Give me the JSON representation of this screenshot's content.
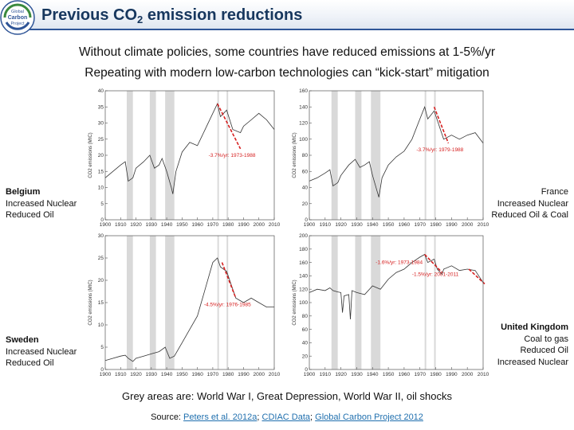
{
  "header": {
    "title_prefix": "Previous CO",
    "title_sub": "2",
    "title_suffix": " emission reductions",
    "logo_lines": [
      "Global",
      "Carbon",
      "Project"
    ]
  },
  "subtitle": {
    "line1": "Without climate policies, some countries have reduced emissions at 1-5%/yr",
    "line2": "Repeating with modern low-carbon technologies can “kick-start” mitigation"
  },
  "labels": {
    "belgium": {
      "name": "Belgium",
      "lines": [
        "Increased Nuclear",
        "Reduced Oil"
      ]
    },
    "france": {
      "name": "France",
      "lines": [
        "Increased Nuclear",
        "Reduced Oil & Coal"
      ]
    },
    "sweden": {
      "name": "Sweden",
      "lines": [
        "Increased Nuclear",
        "Reduced Oil"
      ]
    },
    "uk": {
      "name": "United Kingdom",
      "lines": [
        "Coal to gas",
        "Reduced Oil",
        "Increased Nuclear"
      ]
    }
  },
  "footnote": "Grey areas are: World War I, Great Depression, World War II, oil shocks",
  "source": {
    "prefix": "Source: ",
    "link1": "Peters et al. 2012a",
    "sep1": "; ",
    "link2": "CDIAC Data",
    "sep2": "; ",
    "link3": "Global Carbon Project 2012"
  },
  "colors": {
    "title": "#17375e",
    "accent_line": "#2f5597",
    "trend": "#d62020",
    "shade": "#d9d9d9",
    "link": "#1f6fae"
  },
  "chart_data": [
    {
      "type": "line",
      "id": "belgium",
      "ylabel": "CO2 emissions (MtC)",
      "xlim": [
        1900,
        2010
      ],
      "ylim": [
        0,
        40
      ],
      "xticks": [
        1900,
        1910,
        1920,
        1930,
        1940,
        1950,
        1960,
        1970,
        1980,
        1990,
        2000,
        2010
      ],
      "yticks": [
        0,
        5,
        10,
        15,
        20,
        25,
        30,
        35,
        40
      ],
      "shaded": [
        [
          1914,
          1918
        ],
        [
          1929,
          1933
        ],
        [
          1939,
          1945
        ],
        [
          1973,
          1974
        ],
        [
          1979,
          1980
        ]
      ],
      "x": [
        1900,
        1905,
        1910,
        1913,
        1915,
        1918,
        1920,
        1925,
        1929,
        1932,
        1935,
        1937,
        1940,
        1943,
        1944,
        1946,
        1950,
        1955,
        1960,
        1965,
        1970,
        1973,
        1975,
        1979,
        1983,
        1988,
        1990,
        1995,
        2000,
        2005,
        2010
      ],
      "y": [
        13,
        15,
        17,
        18,
        12,
        13,
        16,
        18,
        20,
        16,
        17,
        19,
        15,
        10,
        8,
        15,
        21,
        24,
        23,
        28,
        33,
        36,
        32,
        34,
        28,
        27,
        29,
        31,
        33,
        31,
        28
      ],
      "trend": {
        "label": "-3.7%/yr: 1973-1988",
        "x": [
          1973,
          1988
        ],
        "y": [
          36,
          22
        ]
      }
    },
    {
      "type": "line",
      "id": "france",
      "ylabel": "CO2 emissions (MtC)",
      "xlim": [
        1900,
        2010
      ],
      "ylim": [
        0,
        160
      ],
      "xticks": [
        1900,
        1910,
        1920,
        1930,
        1940,
        1950,
        1960,
        1970,
        1980,
        1990,
        2000,
        2010
      ],
      "yticks": [
        0,
        20,
        40,
        60,
        80,
        100,
        120,
        140,
        160
      ],
      "shaded": [
        [
          1914,
          1918
        ],
        [
          1929,
          1933
        ],
        [
          1939,
          1945
        ],
        [
          1973,
          1974
        ],
        [
          1979,
          1980
        ]
      ],
      "x": [
        1900,
        1905,
        1910,
        1913,
        1915,
        1918,
        1920,
        1925,
        1929,
        1932,
        1935,
        1938,
        1940,
        1944,
        1946,
        1950,
        1955,
        1960,
        1965,
        1970,
        1973,
        1975,
        1979,
        1985,
        1990,
        1995,
        2000,
        2005,
        2010
      ],
      "y": [
        48,
        52,
        58,
        62,
        42,
        46,
        55,
        68,
        75,
        65,
        68,
        72,
        55,
        28,
        52,
        68,
        78,
        85,
        100,
        125,
        140,
        125,
        135,
        100,
        105,
        100,
        105,
        108,
        95
      ],
      "trend": {
        "label": "-3.7%/yr: 1979-1988",
        "x": [
          1979,
          1988
        ],
        "y": [
          140,
          95
        ]
      }
    },
    {
      "type": "line",
      "id": "sweden",
      "ylabel": "CO2 emissions (MtC)",
      "xlim": [
        1900,
        2010
      ],
      "ylim": [
        0,
        30
      ],
      "xticks": [
        1900,
        1910,
        1920,
        1930,
        1940,
        1950,
        1960,
        1970,
        1980,
        1990,
        2000,
        2010
      ],
      "yticks": [
        0,
        5,
        10,
        15,
        20,
        25,
        30
      ],
      "shaded": [
        [
          1914,
          1918
        ],
        [
          1929,
          1933
        ],
        [
          1939,
          1945
        ],
        [
          1973,
          1974
        ],
        [
          1979,
          1980
        ]
      ],
      "x": [
        1900,
        1905,
        1910,
        1913,
        1915,
        1918,
        1920,
        1925,
        1930,
        1935,
        1939,
        1942,
        1945,
        1950,
        1955,
        1960,
        1965,
        1970,
        1973,
        1975,
        1979,
        1985,
        1990,
        1995,
        2000,
        2005,
        2010
      ],
      "y": [
        2,
        2.5,
        3,
        3.2,
        2.5,
        1.8,
        2.5,
        3,
        3.5,
        4,
        5,
        2.5,
        3,
        6,
        9,
        12,
        18,
        24,
        25,
        23,
        22,
        16,
        15,
        16,
        15,
        14,
        14
      ],
      "trend": {
        "label": "-4.5%/yr: 1976-1985",
        "x": [
          1976,
          1985
        ],
        "y": [
          24,
          16
        ]
      }
    },
    {
      "type": "line",
      "id": "uk",
      "ylabel": "CO2 emissions (MtC)",
      "xlim": [
        1900,
        2010
      ],
      "ylim": [
        0,
        200
      ],
      "xticks": [
        1900,
        1910,
        1920,
        1930,
        1940,
        1950,
        1960,
        1970,
        1980,
        1990,
        2000,
        2010
      ],
      "yticks": [
        0,
        20,
        40,
        60,
        80,
        100,
        120,
        140,
        160,
        180,
        200
      ],
      "shaded": [
        [
          1914,
          1918
        ],
        [
          1929,
          1933
        ],
        [
          1939,
          1945
        ],
        [
          1973,
          1974
        ],
        [
          1979,
          1980
        ]
      ],
      "x": [
        1900,
        1905,
        1910,
        1913,
        1915,
        1918,
        1920,
        1921,
        1922,
        1925,
        1926,
        1927,
        1930,
        1935,
        1940,
        1945,
        1950,
        1955,
        1960,
        1965,
        1970,
        1973,
        1975,
        1979,
        1981,
        1984,
        1985,
        1990,
        1995,
        2000,
        2005,
        2010
      ],
      "y": [
        115,
        120,
        118,
        122,
        118,
        116,
        115,
        85,
        110,
        112,
        75,
        118,
        115,
        112,
        125,
        120,
        135,
        145,
        150,
        160,
        168,
        172,
        160,
        165,
        150,
        142,
        150,
        155,
        148,
        150,
        148,
        130
      ],
      "trends": [
        {
          "label": "-1.6%/yr: 1973-1984",
          "x": [
            1973,
            1984
          ],
          "y": [
            172,
            145
          ],
          "label_x": 1942,
          "label_y": 158
        },
        {
          "label": "-1.5%/yr: 2001-2011",
          "x": [
            2001,
            2011
          ],
          "y": [
            150,
            128
          ],
          "label_x": 1965,
          "label_y": 140
        }
      ]
    }
  ]
}
